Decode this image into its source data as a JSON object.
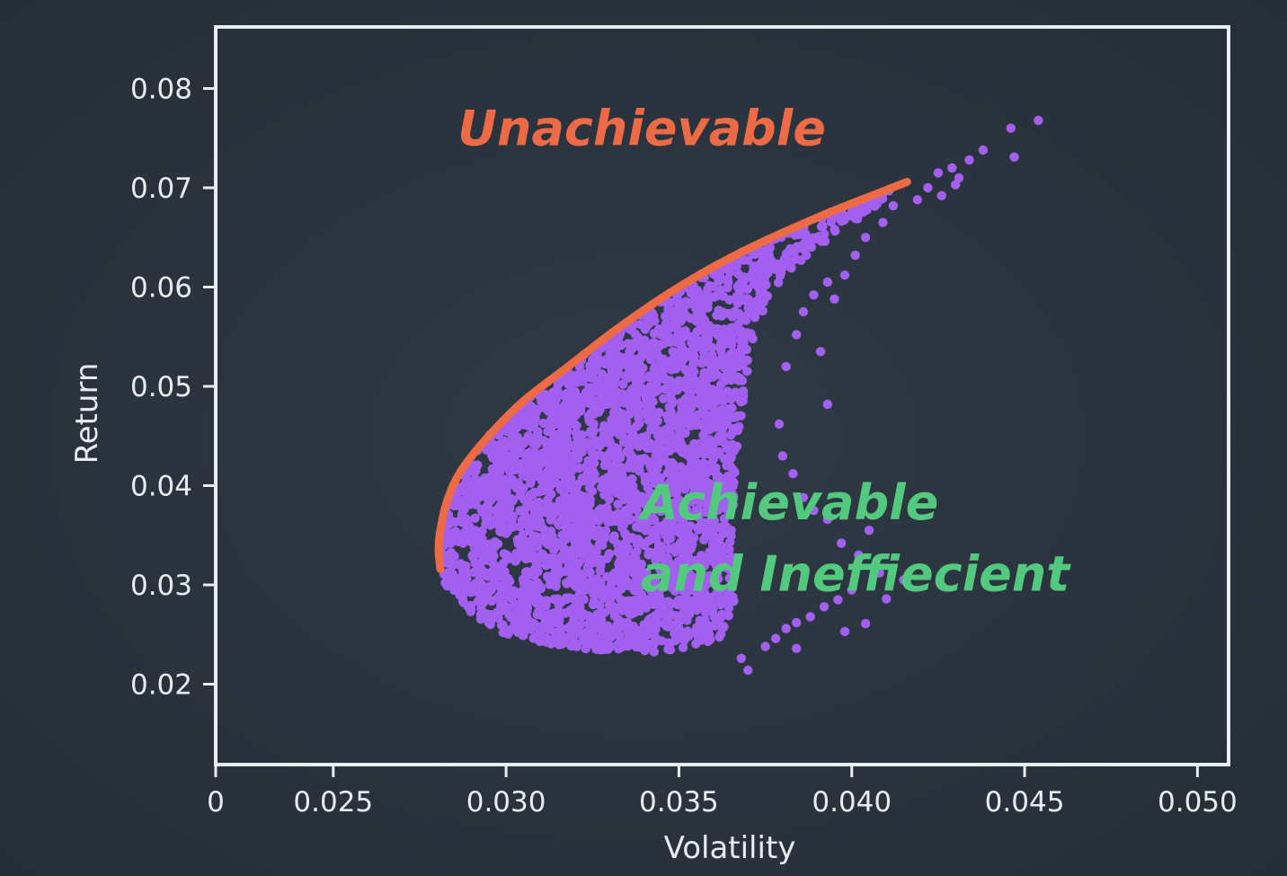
{
  "chart_data": {
    "type": "scatter",
    "title": "",
    "xlabel": "Volatility",
    "ylabel": "Return",
    "x_tick_labels": [
      {
        "value": 0.0216,
        "label": "0"
      },
      {
        "value": 0.025,
        "label": "0.025"
      },
      {
        "value": 0.03,
        "label": "0.030"
      },
      {
        "value": 0.035,
        "label": "0.035"
      },
      {
        "value": 0.04,
        "label": "0.040"
      },
      {
        "value": 0.045,
        "label": "0.045"
      },
      {
        "value": 0.05,
        "label": "0.050"
      }
    ],
    "y_tick_labels": [
      {
        "value": 0.02,
        "label": "0.02"
      },
      {
        "value": 0.03,
        "label": "0.03"
      },
      {
        "value": 0.04,
        "label": "0.04"
      },
      {
        "value": 0.05,
        "label": "0.05"
      },
      {
        "value": 0.06,
        "label": "0.06"
      },
      {
        "value": 0.07,
        "label": "0.07"
      },
      {
        "value": 0.08,
        "label": "0.08"
      }
    ],
    "xlim": [
      0.0216,
      0.0509
    ],
    "ylim": [
      0.0119,
      0.0862
    ],
    "grid": false,
    "legend": "none",
    "colors": {
      "background": "#2b3540",
      "frame": "#e9edf0",
      "points": "#a35ff0",
      "frontier": "#ec6a45",
      "unachievable_label": "#ec6a45",
      "achievable_label": "#52c97e"
    },
    "series": [
      {
        "type": "line",
        "points": [
          [
            0.0281,
            0.0316
          ],
          [
            0.02805,
            0.0335
          ],
          [
            0.0281,
            0.0355
          ],
          [
            0.0283,
            0.0385
          ],
          [
            0.0287,
            0.0415
          ],
          [
            0.0295,
            0.045
          ],
          [
            0.0305,
            0.0485
          ],
          [
            0.0318,
            0.052
          ],
          [
            0.0333,
            0.056
          ],
          [
            0.035,
            0.06
          ],
          [
            0.0368,
            0.0635
          ],
          [
            0.039,
            0.067
          ],
          [
            0.0408,
            0.0695
          ],
          [
            0.0416,
            0.0706
          ]
        ]
      },
      {
        "type": "scatter",
        "region": {
          "boundary": [
            [
              0.0281,
              0.0316
            ],
            [
              0.02805,
              0.0335
            ],
            [
              0.0281,
              0.0355
            ],
            [
              0.0283,
              0.0385
            ],
            [
              0.0287,
              0.0415
            ],
            [
              0.0295,
              0.045
            ],
            [
              0.0305,
              0.0485
            ],
            [
              0.0318,
              0.052
            ],
            [
              0.0333,
              0.056
            ],
            [
              0.035,
              0.06
            ],
            [
              0.0368,
              0.0635
            ],
            [
              0.039,
              0.067
            ],
            [
              0.0408,
              0.0695
            ],
            [
              0.0416,
              0.0706
            ],
            [
              0.0405,
              0.0675
            ],
            [
              0.039,
              0.064
            ],
            [
              0.0378,
              0.06
            ],
            [
              0.0372,
              0.056
            ],
            [
              0.037,
              0.052
            ],
            [
              0.0368,
              0.047
            ],
            [
              0.0366,
              0.04
            ],
            [
              0.0365,
              0.034
            ],
            [
              0.0366,
              0.028
            ],
            [
              0.0362,
              0.0245
            ],
            [
              0.0345,
              0.0232
            ],
            [
              0.032,
              0.0235
            ],
            [
              0.03,
              0.025
            ],
            [
              0.0288,
              0.0275
            ],
            [
              0.0282,
              0.03
            ]
          ],
          "fill_density": "dense"
        },
        "outliers": [
          [
            0.0454,
            0.0768
          ],
          [
            0.0446,
            0.076
          ],
          [
            0.0447,
            0.0731
          ],
          [
            0.0438,
            0.0738
          ],
          [
            0.0434,
            0.0728
          ],
          [
            0.0429,
            0.072
          ],
          [
            0.0431,
            0.071
          ],
          [
            0.0425,
            0.0715
          ],
          [
            0.0422,
            0.07
          ],
          [
            0.0426,
            0.0692
          ],
          [
            0.0419,
            0.0688
          ],
          [
            0.043,
            0.0703
          ],
          [
            0.0412,
            0.0682
          ],
          [
            0.0409,
            0.0665
          ],
          [
            0.0404,
            0.065
          ],
          [
            0.0401,
            0.0632
          ],
          [
            0.0398,
            0.0612
          ],
          [
            0.0393,
            0.0605
          ],
          [
            0.0395,
            0.0588
          ],
          [
            0.0389,
            0.0592
          ],
          [
            0.0386,
            0.0575
          ],
          [
            0.0391,
            0.0535
          ],
          [
            0.0393,
            0.0482
          ],
          [
            0.0384,
            0.0552
          ],
          [
            0.0381,
            0.052
          ],
          [
            0.0379,
            0.0462
          ],
          [
            0.038,
            0.043
          ],
          [
            0.0383,
            0.0412
          ],
          [
            0.0386,
            0.0388
          ],
          [
            0.0389,
            0.0375
          ],
          [
            0.0393,
            0.0366
          ],
          [
            0.0397,
            0.0342
          ],
          [
            0.0402,
            0.033
          ],
          [
            0.0405,
            0.0355
          ],
          [
            0.04,
            0.0295
          ],
          [
            0.0396,
            0.0285
          ],
          [
            0.0392,
            0.0278
          ],
          [
            0.0388,
            0.0268
          ],
          [
            0.0384,
            0.0262
          ],
          [
            0.0381,
            0.0256
          ],
          [
            0.0378,
            0.0246
          ],
          [
            0.0375,
            0.0238
          ],
          [
            0.037,
            0.0214
          ],
          [
            0.0368,
            0.0226
          ],
          [
            0.0384,
            0.0236
          ],
          [
            0.0404,
            0.0261
          ],
          [
            0.041,
            0.0286
          ],
          [
            0.0408,
            0.0312
          ],
          [
            0.0398,
            0.0253
          ],
          [
            0.0415,
            0.0305
          ]
        ]
      }
    ],
    "annotations": [
      {
        "text": "Unachievable",
        "x": 0.0286,
        "y": 0.0743
      },
      {
        "text": "Achievable",
        "x": 0.0339,
        "y": 0.0366
      },
      {
        "text": "and Ineffiecient",
        "x": 0.0339,
        "y": 0.0294
      }
    ]
  }
}
